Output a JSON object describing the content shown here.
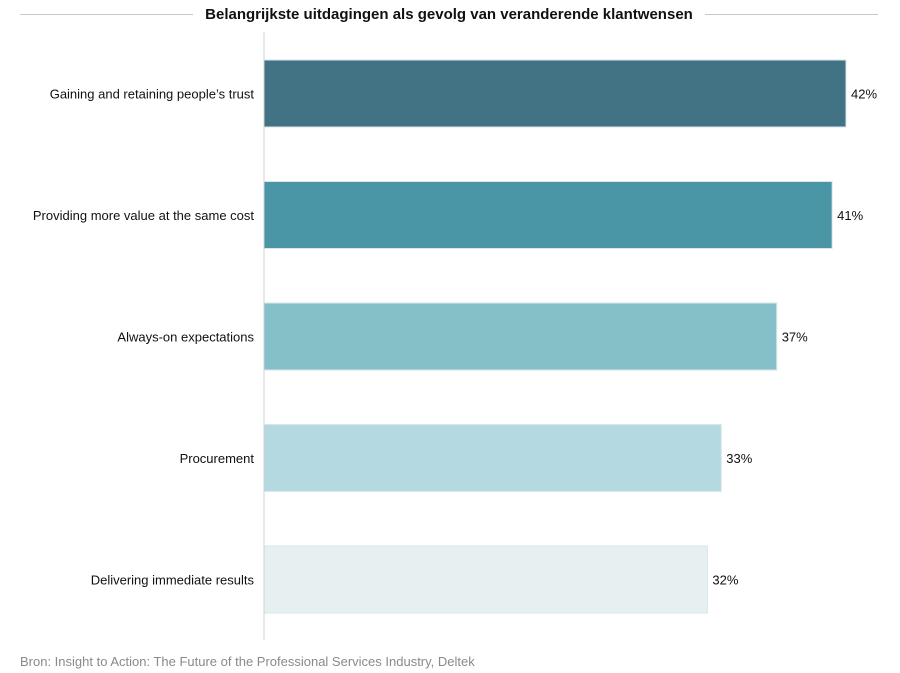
{
  "chart_data": {
    "type": "bar",
    "orientation": "horizontal",
    "title": "Belangrijkste uitdagingen als gevolg van veranderende klantwensen",
    "categories": [
      "Gaining and retaining people’s trust",
      "Providing more value at the same cost",
      "Always-on expectations",
      "Procurement",
      "Delivering immediate results"
    ],
    "values": [
      42,
      41,
      37,
      33,
      32
    ],
    "data_labels": [
      "42%",
      "41%",
      "37%",
      "33%",
      "32%"
    ],
    "colors": [
      "#417385",
      "#4a96a6",
      "#85c0c8",
      "#b5d9e0",
      "#e6f0f1"
    ],
    "xlim": [
      0,
      42
    ],
    "grid": false,
    "legend": "none"
  },
  "source": "Bron: Insight to Action: The Future of the Professional Services Industry, Deltek"
}
